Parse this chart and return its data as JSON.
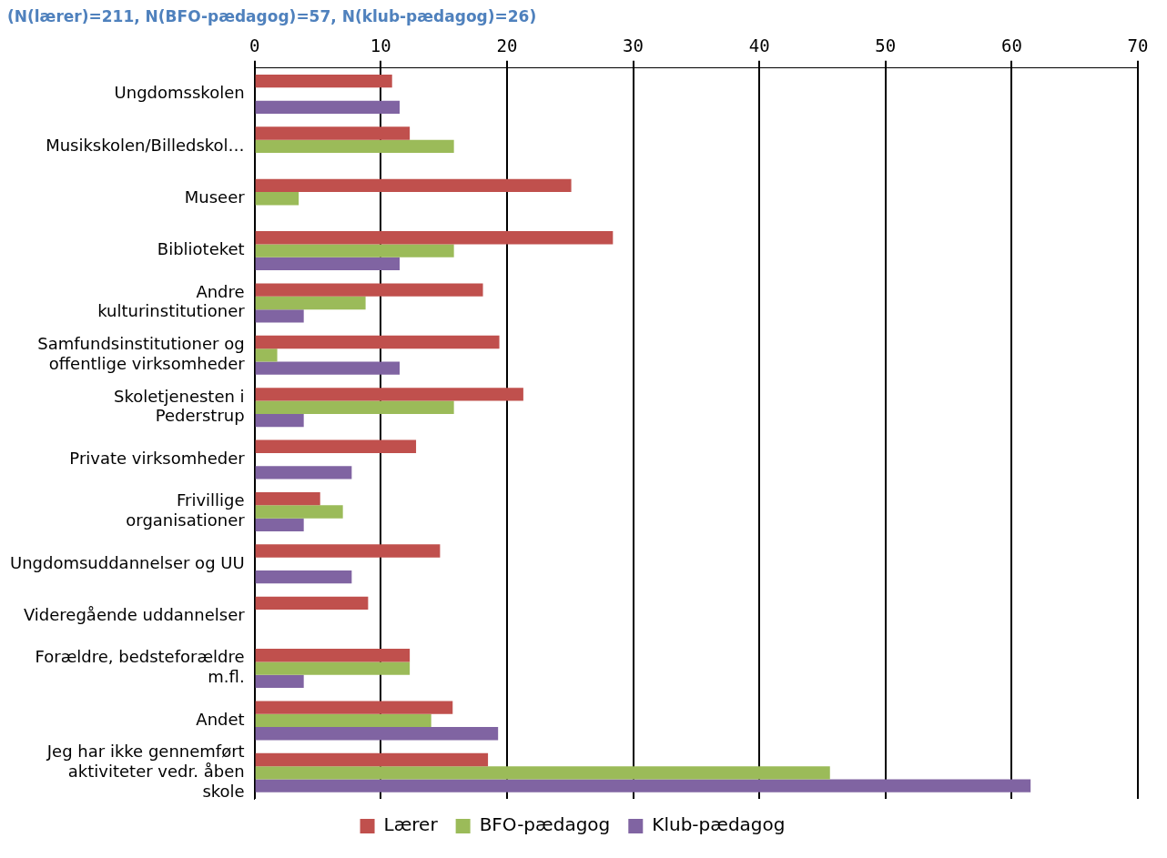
{
  "chart_data": {
    "type": "bar",
    "orientation": "horizontal",
    "title": "(N(lærer)=211, N(BFO-pædagog)=57, N(klub-pædagog)=26)",
    "categories": [
      "Ungdomsskolen",
      "Musikskolen/Billedskol…",
      "Museer",
      "Biblioteket",
      "Andre kulturinstitutioner",
      "Samfundsinstitutioner og offentlige virksomheder",
      "Skoletjenesten i Pederstrup",
      "Private virksomheder",
      "Frivillige organisationer",
      "Ungdomsuddannelser og UU",
      "Videregående uddannelser",
      "Forældre, bedsteforældre m.fl.",
      "Andet",
      "Jeg har ikke gennemført aktiviteter vedr. åben skole"
    ],
    "series": [
      {
        "name": "Lærer",
        "color": "#c0504d",
        "values": [
          10.9,
          12.3,
          25.1,
          28.4,
          18.1,
          19.4,
          21.3,
          12.8,
          5.2,
          14.7,
          9.0,
          12.3,
          15.7,
          18.5
        ]
      },
      {
        "name": "BFO-pædagog",
        "color": "#9bbb59",
        "values": [
          null,
          15.8,
          3.5,
          15.8,
          8.8,
          1.8,
          15.8,
          null,
          7.0,
          null,
          null,
          12.3,
          14.0,
          45.6
        ]
      },
      {
        "name": "Klub-pædagog",
        "color": "#8064a2",
        "values": [
          11.5,
          null,
          null,
          11.5,
          3.9,
          11.5,
          3.9,
          7.7,
          3.9,
          7.7,
          null,
          3.9,
          19.3,
          61.5
        ]
      }
    ],
    "xlim": [
      0,
      70
    ],
    "xticks": [
      0,
      10,
      20,
      30,
      40,
      50,
      60,
      70
    ],
    "grid": "x",
    "legend": "bottom"
  }
}
